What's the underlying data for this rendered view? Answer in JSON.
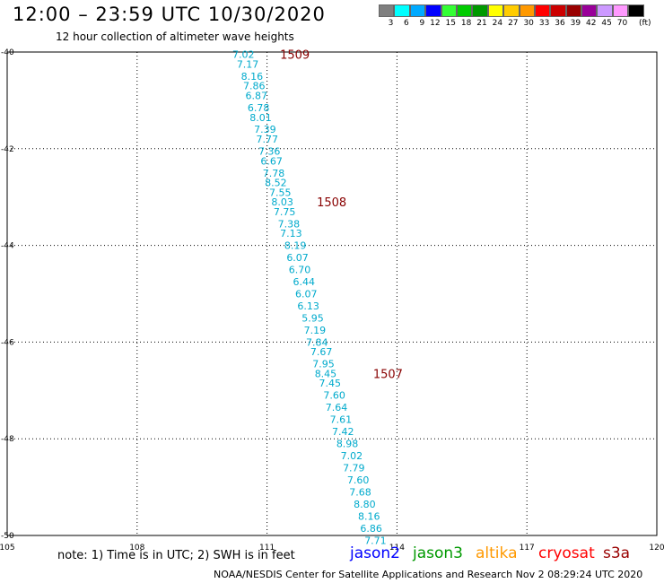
{
  "header": {
    "title": "12:00 – 23:59 UTC 10/30/2020",
    "subtitle": "12 hour collection of altimeter wave heights"
  },
  "colorbar": {
    "colors": [
      "#7f7f7f",
      "#00ffff",
      "#00aaff",
      "#0000ff",
      "#33ff33",
      "#00cc00",
      "#009900",
      "#ffff00",
      "#ffcc00",
      "#ff9900",
      "#ff0000",
      "#cc0000",
      "#990000",
      "#990099",
      "#cc99ff",
      "#ff99ff",
      "#000000"
    ],
    "labels": [
      "3",
      "6",
      "9",
      "12",
      "15",
      "18",
      "21",
      "24",
      "27",
      "30",
      "33",
      "36",
      "39",
      "42",
      "45",
      "70"
    ],
    "unit": "(ft)"
  },
  "footer": {
    "note": "note:  1) Time is in UTC;  2) SWH is in feet",
    "legend": [
      {
        "name": "jason2",
        "color": "#0000ff"
      },
      {
        "name": "jason3",
        "color": "#009900"
      },
      {
        "name": "altika",
        "color": "#ff9900"
      },
      {
        "name": "cryosat",
        "color": "#ff0000"
      },
      {
        "name": "s3a",
        "color": "#990000"
      }
    ],
    "credit": "NOAA/NESDIS Center for Satellite Applications and Research    Nov  2 08:29:24 UTC 2020"
  },
  "chart_data": {
    "type": "scatter",
    "x_ticks": [
      "105",
      "108",
      "111",
      "114",
      "117",
      "120"
    ],
    "y_ticks": [
      "-40",
      "-42",
      "-44",
      "-46",
      "-48",
      "-50"
    ],
    "xlim": [
      105,
      120
    ],
    "ylim": [
      -50,
      -40
    ],
    "grid": true,
    "series": [
      {
        "name": "s3a",
        "color": "#00aacc",
        "points": [
          {
            "x": 110.2,
            "y": -40.05,
            "label": "7.02"
          },
          {
            "x": 110.3,
            "y": -40.25,
            "label": "7.17"
          },
          {
            "x": 110.4,
            "y": -40.5,
            "label": "8.16"
          },
          {
            "x": 110.45,
            "y": -40.7,
            "label": "7.86"
          },
          {
            "x": 110.5,
            "y": -40.9,
            "label": "6.87"
          },
          {
            "x": 110.55,
            "y": -41.15,
            "label": "6.78"
          },
          {
            "x": 110.6,
            "y": -41.35,
            "label": "8.01"
          },
          {
            "x": 110.7,
            "y": -41.6,
            "label": "7.39"
          },
          {
            "x": 110.75,
            "y": -41.8,
            "label": "7.77"
          },
          {
            "x": 110.8,
            "y": -42.05,
            "label": "7.36"
          },
          {
            "x": 110.85,
            "y": -42.25,
            "label": "6.67"
          },
          {
            "x": 110.9,
            "y": -42.5,
            "label": "7.78"
          },
          {
            "x": 110.95,
            "y": -42.7,
            "label": "8.52"
          },
          {
            "x": 111.05,
            "y": -42.9,
            "label": "7.55"
          },
          {
            "x": 111.1,
            "y": -43.1,
            "label": "8.03"
          },
          {
            "x": 111.15,
            "y": -43.3,
            "label": "7.75"
          },
          {
            "x": 111.25,
            "y": -43.55,
            "label": "7.38"
          },
          {
            "x": 111.3,
            "y": -43.75,
            "label": "7.13"
          },
          {
            "x": 111.4,
            "y": -44.0,
            "label": "8.19"
          },
          {
            "x": 111.45,
            "y": -44.25,
            "label": "6.07"
          },
          {
            "x": 111.5,
            "y": -44.5,
            "label": "6.70"
          },
          {
            "x": 111.6,
            "y": -44.75,
            "label": "6.44"
          },
          {
            "x": 111.65,
            "y": -45.0,
            "label": "6.07"
          },
          {
            "x": 111.7,
            "y": -45.25,
            "label": "6.13"
          },
          {
            "x": 111.8,
            "y": -45.5,
            "label": "5.95"
          },
          {
            "x": 111.85,
            "y": -45.75,
            "label": "7.19"
          },
          {
            "x": 111.9,
            "y": -46.0,
            "label": "7.84"
          },
          {
            "x": 112.0,
            "y": -46.2,
            "label": "7.67"
          },
          {
            "x": 112.05,
            "y": -46.45,
            "label": "7.95"
          },
          {
            "x": 112.1,
            "y": -46.65,
            "label": "8.45"
          },
          {
            "x": 112.2,
            "y": -46.85,
            "label": "7.45"
          },
          {
            "x": 112.3,
            "y": -47.1,
            "label": "7.60"
          },
          {
            "x": 112.35,
            "y": -47.35,
            "label": "7.64"
          },
          {
            "x": 112.45,
            "y": -47.6,
            "label": "7.61"
          },
          {
            "x": 112.5,
            "y": -47.85,
            "label": "7.42"
          },
          {
            "x": 112.6,
            "y": -48.1,
            "label": "8.98"
          },
          {
            "x": 112.7,
            "y": -48.35,
            "label": "7.02"
          },
          {
            "x": 112.75,
            "y": -48.6,
            "label": "7.79"
          },
          {
            "x": 112.85,
            "y": -48.85,
            "label": "7.60"
          },
          {
            "x": 112.9,
            "y": -49.1,
            "label": "7.68"
          },
          {
            "x": 113.0,
            "y": -49.35,
            "label": "8.80"
          },
          {
            "x": 113.1,
            "y": -49.6,
            "label": "8.16"
          },
          {
            "x": 113.15,
            "y": -49.85,
            "label": "6.86"
          },
          {
            "x": 113.25,
            "y": -50.1,
            "label": "7.71"
          }
        ]
      }
    ],
    "time_labels": [
      {
        "x": 111.3,
        "y": -40.05,
        "label": "1509",
        "color": "#880000"
      },
      {
        "x": 112.15,
        "y": -43.1,
        "label": "1508",
        "color": "#880000"
      },
      {
        "x": 113.45,
        "y": -46.65,
        "label": "1507",
        "color": "#880000"
      }
    ]
  }
}
